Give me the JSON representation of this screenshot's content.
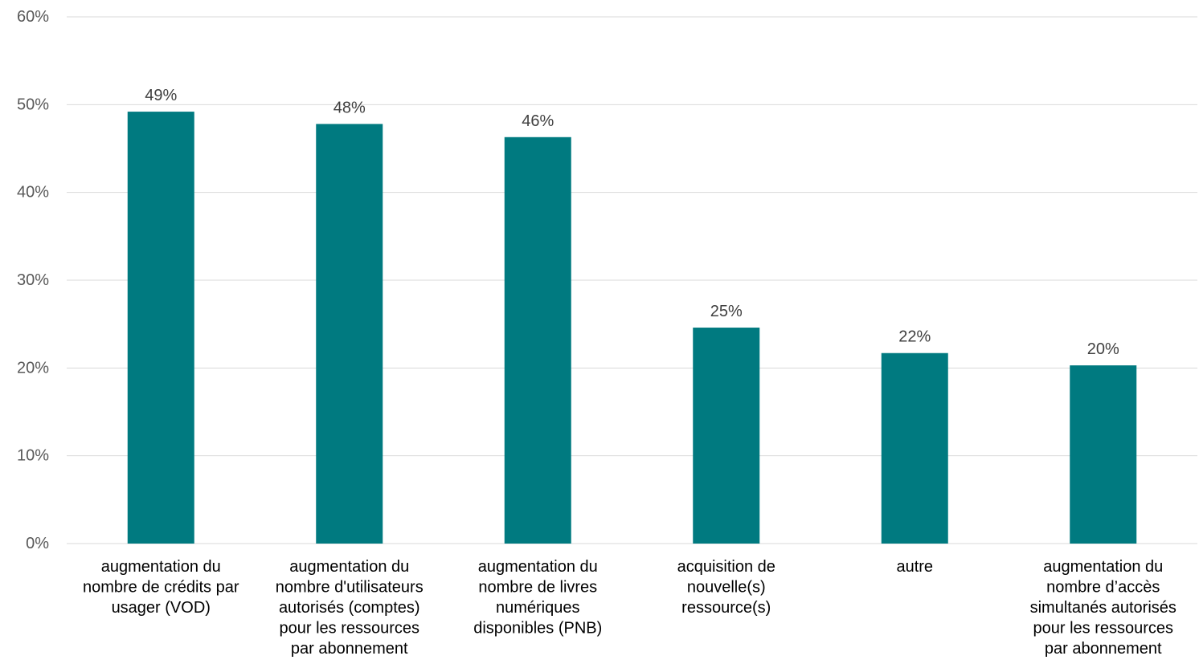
{
  "chart_data": {
    "type": "bar",
    "title": "",
    "xlabel": "",
    "ylabel": "",
    "ylim": [
      0,
      60
    ],
    "yticks": [
      0,
      10,
      20,
      30,
      40,
      50,
      60
    ],
    "ytick_labels": [
      "0%",
      "10%",
      "20%",
      "30%",
      "40%",
      "50%",
      "60%"
    ],
    "grid": true,
    "legend": "none",
    "bar_color": "#007A80",
    "categories": [
      [
        "augmentation du",
        "nombre de crédits par",
        "usager (VOD)"
      ],
      [
        "augmentation du",
        "nombre d'utilisateurs",
        "autorisés (comptes)",
        "pour les ressources",
        "par abonnement"
      ],
      [
        "augmentation du",
        "nombre de livres",
        "numériques",
        "disponibles (PNB)"
      ],
      [
        "acquisition de",
        "nouvelle(s)",
        "ressource(s)"
      ],
      [
        "autre"
      ],
      [
        "augmentation du",
        "nombre d’accès",
        "simultanés autorisés",
        "pour les ressources",
        "par abonnement"
      ]
    ],
    "values": [
      49.2,
      47.8,
      46.3,
      24.6,
      21.7,
      20.3
    ],
    "data_labels": [
      "49%",
      "48%",
      "46%",
      "25%",
      "22%",
      "20%"
    ]
  }
}
